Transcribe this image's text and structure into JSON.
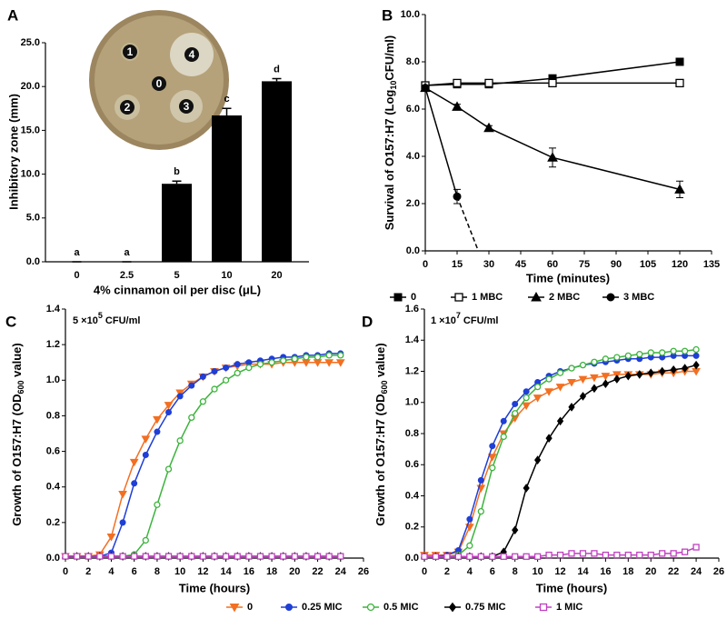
{
  "chart_data": [
    {
      "panel": "A",
      "type": "bar",
      "xlabel": "4% cinnamon oil per disc (μL)",
      "ylabel": "Inhibitory zone (mm)",
      "categories": [
        "0",
        "2.5",
        "5",
        "10",
        "20"
      ],
      "values": [
        0,
        0,
        8.9,
        16.7,
        20.6
      ],
      "errors": [
        0,
        0,
        0.3,
        0.8,
        0.3
      ],
      "significance_letters": [
        "a",
        "a",
        "b",
        "c",
        "d"
      ],
      "inset_labels": [
        "1",
        "4",
        "0",
        "2",
        "3"
      ],
      "color": "#000000",
      "ylim": [
        0,
        25
      ],
      "yticks": [
        {
          "value": 0,
          "label": "0.0"
        },
        {
          "value": 5,
          "label": "5.0"
        },
        {
          "value": 10,
          "label": "10.0"
        },
        {
          "value": 15,
          "label": "15.0"
        },
        {
          "value": 20,
          "label": "20.0"
        },
        {
          "value": 25,
          "label": "25.0"
        }
      ]
    },
    {
      "panel": "B",
      "type": "line",
      "xlabel": "Time (minutes)",
      "ylabel": {
        "text": "Survival of O157:H7 (Log",
        "sub": "10",
        "after": "CFU/ml)"
      },
      "x": [
        0,
        15,
        30,
        60,
        120
      ],
      "xlim": [
        0,
        135
      ],
      "xticks": [
        0,
        15,
        30,
        45,
        60,
        75,
        90,
        105,
        120,
        135
      ],
      "ylim": [
        0,
        10
      ],
      "yticks": [
        {
          "value": 0,
          "label": "0.0"
        },
        {
          "value": 2,
          "label": "2.0"
        },
        {
          "value": 4,
          "label": "4.0"
        },
        {
          "value": 6,
          "label": "6.0"
        },
        {
          "value": 8,
          "label": "8.0"
        },
        {
          "value": 10,
          "label": "10.0"
        }
      ],
      "series": [
        {
          "name": "0",
          "color": "#000000",
          "marker": "square",
          "values": [
            7.0,
            7.05,
            7.05,
            7.3,
            8.0
          ],
          "errors": [
            0.15,
            0.1,
            0.1,
            0.12,
            0.1
          ]
        },
        {
          "name": "1 MBC",
          "color": "#000000",
          "marker": "square-open",
          "values": [
            7.0,
            7.1,
            7.1,
            7.1,
            7.1
          ],
          "errors": [
            0.1,
            0.1,
            0.1,
            0.1,
            0.1
          ]
        },
        {
          "name": "2 MBC",
          "color": "#000000",
          "marker": "triangle",
          "values": [
            6.9,
            6.1,
            5.2,
            3.95,
            2.6
          ],
          "errors": [
            0.1,
            0.1,
            0.1,
            0.4,
            0.35
          ]
        },
        {
          "name": "3 MBC",
          "color": "#000000",
          "marker": "circle",
          "values": [
            6.9,
            2.3,
            null,
            null,
            null
          ],
          "errors": [
            0.1,
            0.3,
            null,
            null,
            null
          ],
          "dashed_to": {
            "x": 25,
            "y": 0
          }
        }
      ]
    },
    {
      "panel": "C",
      "type": "line",
      "annotation": {
        "text": "5 ×10",
        "sup": "5",
        "after": " CFU/ml"
      },
      "xlabel": "Time (hours)",
      "ylabel": {
        "text": "Growth of O157:H7 (OD",
        "sub": "600",
        "after": " value)"
      },
      "x": [
        0,
        1,
        2,
        3,
        4,
        5,
        6,
        7,
        8,
        9,
        10,
        11,
        12,
        13,
        14,
        15,
        16,
        17,
        18,
        19,
        20,
        21,
        22,
        23,
        24
      ],
      "xlim": [
        0,
        26
      ],
      "xticks": [
        0,
        2,
        4,
        6,
        8,
        10,
        12,
        14,
        16,
        18,
        20,
        22,
        24,
        26
      ],
      "ylim": [
        0,
        1.4
      ],
      "yticks": [
        {
          "value": 0,
          "label": "0.0"
        },
        0.2,
        0.4,
        0.6,
        0.8,
        {
          "value": 1,
          "label": "1.0"
        },
        1.2,
        1.4
      ],
      "series": [
        {
          "name": "0",
          "color": "#f36f21",
          "marker": "triangle-down",
          "values": [
            0.01,
            0.01,
            0.01,
            0.02,
            0.12,
            0.36,
            0.54,
            0.67,
            0.78,
            0.86,
            0.93,
            0.98,
            1.02,
            1.05,
            1.07,
            1.08,
            1.09,
            1.09,
            1.09,
            1.1,
            1.1,
            1.1,
            1.1,
            1.1,
            1.1
          ]
        },
        {
          "name": "0.25 MIC",
          "color": "#1f3fd6",
          "marker": "circle",
          "values": [
            0.01,
            0.01,
            0.01,
            0.01,
            0.03,
            0.2,
            0.42,
            0.58,
            0.71,
            0.82,
            0.91,
            0.97,
            1.02,
            1.05,
            1.07,
            1.09,
            1.1,
            1.11,
            1.12,
            1.13,
            1.13,
            1.14,
            1.14,
            1.15,
            1.15
          ]
        },
        {
          "name": "0.5 MIC",
          "color": "#3cb43c",
          "marker": "circle-open",
          "values": [
            0.01,
            0.01,
            0.01,
            0.01,
            0.01,
            0.01,
            0.02,
            0.1,
            0.3,
            0.5,
            0.66,
            0.79,
            0.88,
            0.95,
            1.0,
            1.04,
            1.07,
            1.09,
            1.1,
            1.11,
            1.12,
            1.13,
            1.13,
            1.14,
            1.14
          ]
        },
        {
          "name": "0.75 MIC",
          "color": "#000000",
          "marker": "diamond",
          "values": [
            0.01,
            0.01,
            0.01,
            0.01,
            0.01,
            0.01,
            0.01,
            0.01,
            0.01,
            0.01,
            0.01,
            0.01,
            0.01,
            0.01,
            0.01,
            0.01,
            0.01,
            0.01,
            0.01,
            0.01,
            0.01,
            0.01,
            0.01,
            0.01,
            0.01
          ]
        },
        {
          "name": "1 MIC",
          "color": "#c040c0",
          "marker": "square-open",
          "values": [
            0.01,
            0.01,
            0.01,
            0.01,
            0.01,
            0.01,
            0.01,
            0.01,
            0.01,
            0.01,
            0.01,
            0.01,
            0.01,
            0.01,
            0.01,
            0.01,
            0.01,
            0.01,
            0.01,
            0.01,
            0.01,
            0.01,
            0.01,
            0.01,
            0.01
          ]
        }
      ]
    },
    {
      "panel": "D",
      "type": "line",
      "annotation": {
        "text": "1 ×10",
        "sup": "7",
        "after": " CFU/ml"
      },
      "xlabel": "Time (hours)",
      "ylabel": {
        "text": "Growth of O157:H7 (OD",
        "sub": "600",
        "after": " value)"
      },
      "x": [
        0,
        1,
        2,
        3,
        4,
        5,
        6,
        7,
        8,
        9,
        10,
        11,
        12,
        13,
        14,
        15,
        16,
        17,
        18,
        19,
        20,
        21,
        22,
        23,
        24
      ],
      "xlim": [
        0,
        26
      ],
      "xticks": [
        0,
        2,
        4,
        6,
        8,
        10,
        12,
        14,
        16,
        18,
        20,
        22,
        24,
        26
      ],
      "ylim": [
        0,
        1.6
      ],
      "yticks": [
        {
          "value": 0,
          "label": "0.0"
        },
        0.2,
        0.4,
        0.6,
        0.8,
        {
          "value": 1,
          "label": "1.0"
        },
        1.2,
        1.4,
        1.6
      ],
      "series": [
        {
          "color": "#f36f21",
          "marker": "triangle-down",
          "values": [
            0.02,
            0.02,
            0.02,
            0.04,
            0.2,
            0.45,
            0.65,
            0.8,
            0.9,
            0.98,
            1.03,
            1.07,
            1.1,
            1.13,
            1.15,
            1.16,
            1.17,
            1.18,
            1.18,
            1.18,
            1.18,
            1.19,
            1.19,
            1.2,
            1.2
          ]
        },
        {
          "color": "#1f3fd6",
          "marker": "circle",
          "values": [
            0.01,
            0.01,
            0.02,
            0.05,
            0.25,
            0.5,
            0.72,
            0.88,
            0.99,
            1.07,
            1.13,
            1.17,
            1.2,
            1.22,
            1.24,
            1.25,
            1.26,
            1.27,
            1.28,
            1.28,
            1.29,
            1.29,
            1.3,
            1.3,
            1.3
          ]
        },
        {
          "color": "#3cb43c",
          "marker": "circle-open",
          "values": [
            0.01,
            0.01,
            0.01,
            0.02,
            0.08,
            0.3,
            0.58,
            0.78,
            0.93,
            1.03,
            1.1,
            1.15,
            1.19,
            1.22,
            1.24,
            1.26,
            1.28,
            1.29,
            1.3,
            1.31,
            1.32,
            1.32,
            1.33,
            1.33,
            1.34
          ]
        },
        {
          "color": "#000000",
          "marker": "diamond",
          "values": [
            0.01,
            0.01,
            0.01,
            0.01,
            0.01,
            0.01,
            0.01,
            0.04,
            0.18,
            0.45,
            0.63,
            0.77,
            0.88,
            0.97,
            1.04,
            1.09,
            1.12,
            1.15,
            1.17,
            1.18,
            1.19,
            1.2,
            1.21,
            1.22,
            1.24
          ]
        },
        {
          "color": "#c040c0",
          "marker": "square-open",
          "values": [
            0.01,
            0.01,
            0.01,
            0.01,
            0.01,
            0.01,
            0.01,
            0.01,
            0.01,
            0.01,
            0.01,
            0.02,
            0.02,
            0.03,
            0.03,
            0.03,
            0.02,
            0.02,
            0.02,
            0.02,
            0.02,
            0.03,
            0.03,
            0.04,
            0.07
          ]
        }
      ]
    }
  ]
}
